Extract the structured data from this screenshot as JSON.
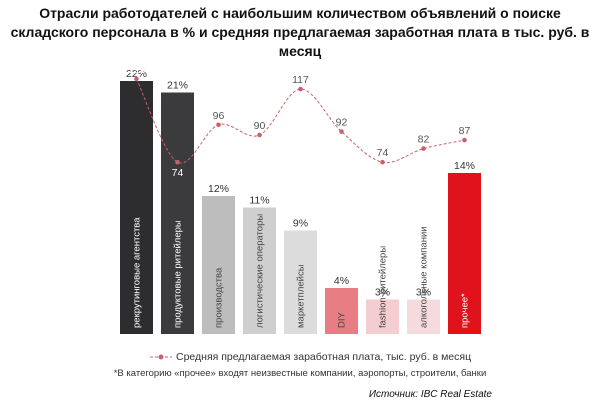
{
  "title": "Отрасли работодателей с наибольшим количеством объявлений о поиске складского персонала в % и средняя предлагаемая заработная плата в тыс. руб. в месяц",
  "legend_label": "Средняя предлагаемая заработная плата, тыс. руб. в месяц",
  "footnote": "*В категорию «прочее» входят неизвестные компании, аэропорты, строители, банки",
  "source": "Источник: IBC Real Estate",
  "colors": {
    "line": "#c9616c",
    "label_dark": "#ffffff",
    "label_light": "#444444"
  },
  "chart_data": {
    "type": "bar",
    "categories": [
      "рекрутинговые агентства",
      "продуктовые ритейлеры",
      "производства",
      "логистические операторы",
      "маркетплейсы",
      "DIY",
      "fashion-ритейлеры",
      "алкогольные компании",
      "прочее*"
    ],
    "series": [
      {
        "values": [
          22,
          21,
          12,
          11,
          9,
          4,
          3,
          3,
          14
        ],
        "labels": [
          "22%",
          "21%",
          "12%",
          "11%",
          "9%",
          "4%",
          "3%",
          "3%",
          "14%"
        ],
        "colors": [
          "#2d2d2f",
          "#3b3b3d",
          "#bdbdbd",
          "#cfcfcf",
          "#dcdcdc",
          "#e87e83",
          "#f3cdcf",
          "#f6dbdc",
          "#e0121b"
        ]
      },
      {
        "name": "Средняя предлагаемая заработная плата, тыс. руб. в месяц",
        "type": "line",
        "values": [
          123,
          74,
          96,
          90,
          117,
          92,
          74,
          82,
          87
        ]
      }
    ]
  }
}
